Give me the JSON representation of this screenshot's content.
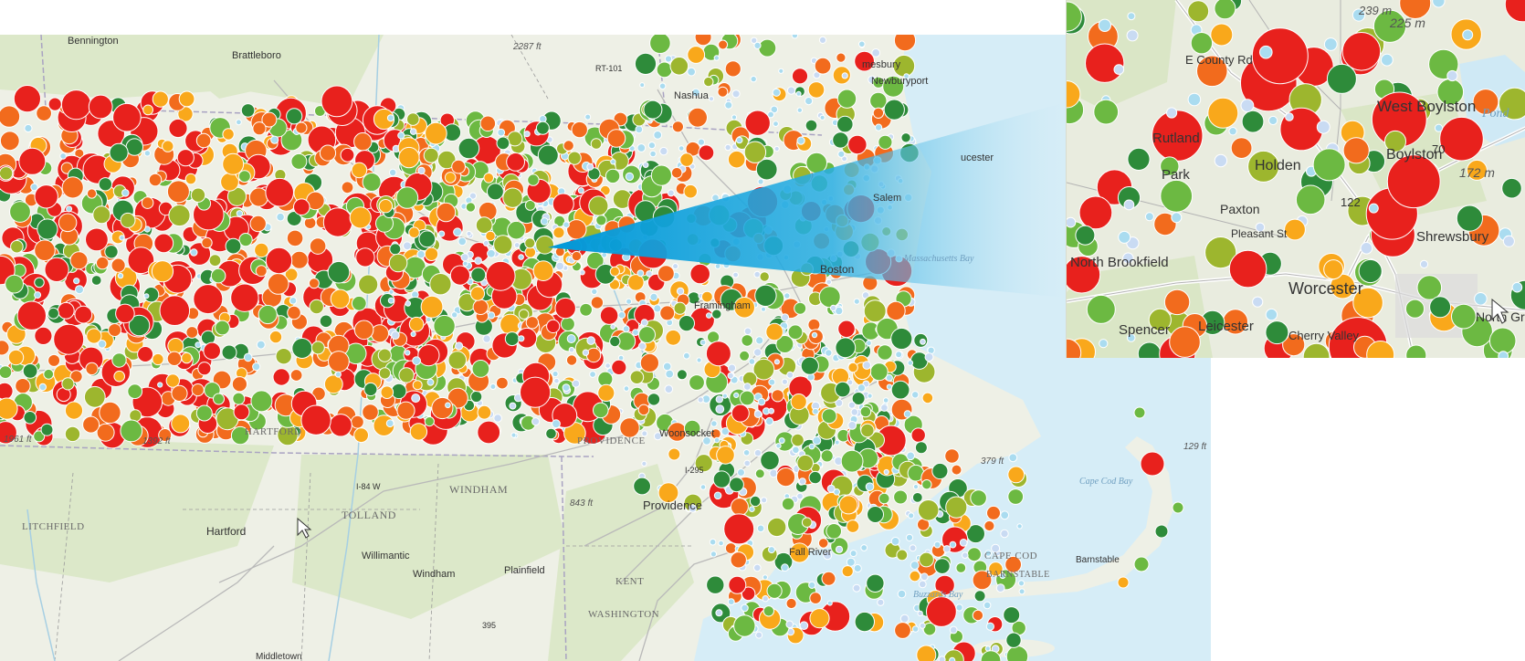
{
  "colors": {
    "land": "#eef0e6",
    "forest": "#d9e6c6",
    "water": "#cfe9f5",
    "ocean": "#d6edf7",
    "beam_start": "#0098d8",
    "beam_end": "#d6edf7",
    "marker_palette": [
      "#e8211d",
      "#f26b1d",
      "#f9a81b",
      "#9db62e",
      "#6cb942",
      "#2e8b3a",
      "#aadcf0",
      "#c9dbf3"
    ],
    "marker_palette_names": [
      "red",
      "dark-orange",
      "orange",
      "olive",
      "light-green",
      "dark-green",
      "light-blue",
      "pale-blue"
    ]
  },
  "main_map": {
    "labels": [
      {
        "text": "Bennington",
        "kind": "town"
      },
      {
        "text": "Brattleboro",
        "kind": "town"
      },
      {
        "text": "2287 ft",
        "kind": "elev"
      },
      {
        "text": "Nashua",
        "kind": "town"
      },
      {
        "text": "mesbury",
        "kind": "town"
      },
      {
        "text": "Newburyport",
        "kind": "town"
      },
      {
        "text": "ucester",
        "kind": "town"
      },
      {
        "text": "Salem",
        "kind": "town"
      },
      {
        "text": "Boston",
        "kind": "town"
      },
      {
        "text": "Massachusetts Bay",
        "kind": "water"
      },
      {
        "text": "Framingham",
        "kind": "town"
      },
      {
        "text": "HARTFORD",
        "kind": "county"
      },
      {
        "text": "1961 ft",
        "kind": "elev"
      },
      {
        "text": "1392 ft",
        "kind": "elev"
      },
      {
        "text": "PROVIDENCE",
        "kind": "county"
      },
      {
        "text": "Woonsocket",
        "kind": "town"
      },
      {
        "text": "WINDHAM",
        "kind": "county"
      },
      {
        "text": "843 ft",
        "kind": "elev"
      },
      {
        "text": "Providence",
        "kind": "town"
      },
      {
        "text": "LITCHFIELD",
        "kind": "county"
      },
      {
        "text": "Hartford",
        "kind": "town"
      },
      {
        "text": "TOLLAND",
        "kind": "county"
      },
      {
        "text": "Willimantic",
        "kind": "town"
      },
      {
        "text": "Windham",
        "kind": "town"
      },
      {
        "text": "Plainfield",
        "kind": "town"
      },
      {
        "text": "KENT",
        "kind": "county"
      },
      {
        "text": "WASHINGTON",
        "kind": "county"
      },
      {
        "text": "Fall River",
        "kind": "town"
      },
      {
        "text": "Buzzards Bay",
        "kind": "water"
      },
      {
        "text": "379 ft",
        "kind": "elev"
      },
      {
        "text": "129 ft",
        "kind": "elev"
      },
      {
        "text": "Cape Cod Bay",
        "kind": "water"
      },
      {
        "text": "CAPE COD",
        "kind": "county"
      },
      {
        "text": "BARNSTABLE",
        "kind": "county"
      },
      {
        "text": "Barnstable",
        "kind": "town"
      },
      {
        "text": "Middletown",
        "kind": "town"
      },
      {
        "text": "395",
        "kind": "route"
      },
      {
        "text": "I-84 W",
        "kind": "route"
      },
      {
        "text": "I-295",
        "kind": "route"
      },
      {
        "text": "RT-101",
        "kind": "route"
      }
    ],
    "cursor_icon": "mouse-pointer-icon"
  },
  "inset_map": {
    "labels": [
      {
        "text": "West Boylston",
        "kind": "town"
      },
      {
        "text": "Boylston",
        "kind": "town"
      },
      {
        "text": "Shrewsbury",
        "kind": "town"
      },
      {
        "text": "Worcester",
        "kind": "town"
      },
      {
        "text": "Spencer",
        "kind": "town"
      },
      {
        "text": "Leicester",
        "kind": "town"
      },
      {
        "text": "Cherry Valley",
        "kind": "town"
      },
      {
        "text": "North Brookfield",
        "kind": "town"
      },
      {
        "text": "Holden",
        "kind": "town"
      },
      {
        "text": "Rutland",
        "kind": "town"
      },
      {
        "text": "Park",
        "kind": "town"
      },
      {
        "text": "North Grafton",
        "kind": "town"
      },
      {
        "text": "Paxton",
        "kind": "town"
      },
      {
        "text": "E County Rd",
        "kind": "road"
      },
      {
        "text": "Pleasant St",
        "kind": "road"
      },
      {
        "text": "225 m",
        "kind": "elev"
      },
      {
        "text": "172 m",
        "kind": "elev"
      },
      {
        "text": "239 m",
        "kind": "elev"
      },
      {
        "text": "Pond",
        "kind": "water"
      },
      {
        "text": "70",
        "kind": "route"
      },
      {
        "text": "122",
        "kind": "route"
      }
    ],
    "cursor_icon": "mouse-pointer-icon"
  }
}
